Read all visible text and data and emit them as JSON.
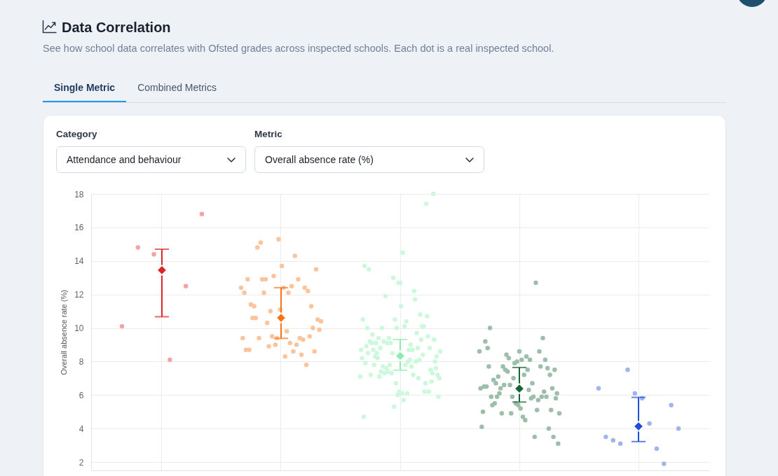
{
  "chart_data": {
    "type": "scatter",
    "title": "Data Correlation",
    "subtitle": "See how school data correlates with Ofsted grades across inspected schools. Each dot is a real inspected school.",
    "ylabel": "Overall absence rate (%)",
    "annotations": [
      "Single Metric",
      "Combined Metrics",
      "Category",
      "Attendance and behaviour",
      "Metric",
      "Overall absence rate (%)"
    ],
    "categories": [
      null,
      null,
      null,
      null,
      null
    ],
    "ylim": [
      1.5,
      18
    ],
    "yticks": [
      2,
      4,
      6,
      8,
      10,
      12,
      14,
      16,
      18
    ],
    "grid": true,
    "marker": "circle",
    "tick_labels": "y",
    "series": [
      {
        "colors": [
          "#f0a4a4",
          "#fcc49c",
          "#ccf8dc",
          "#9dbeaa",
          "#a0b5ef"
        ],
        "values": [
          10.1,
          12.4,
          7.1,
          8.6,
          6.4
        ]
      },
      {
        "colors": [
          "#f0a4a4",
          "#fcc49c",
          "#ccf8dc",
          "#9dbeaa",
          "#a0b5ef"
        ],
        "values": [
          14.8,
          9.4,
          8.7,
          6.4,
          3.5
        ]
      },
      {
        "colors": [
          "#f0a4a4",
          "#fcc49c",
          "#ccf8dc",
          "#9dbeaa",
          "#a0b5ef"
        ],
        "values": [
          14.4,
          12.1,
          8.2,
          4.1,
          3.3
        ]
      },
      {
        "colors": [
          "#f0a4a4",
          "#fcc49c",
          "#ccf8dc",
          "#9dbeaa",
          "#a0b5ef"
        ],
        "values": [
          8.1,
          8.7,
          10.5,
          5.0,
          3.1
        ]
      },
      {
        "colors": [
          "#f0a4a4",
          "#fcc49c",
          "#ccf8dc",
          "#9dbeaa",
          "#a0b5ef"
        ],
        "values": [
          12.5,
          12.9,
          4.7,
          6.5,
          7.5
        ]
      },
      {
        "colors": [
          "#f0a4a4",
          "#fcc49c",
          "#ccf8dc",
          "#9dbeaa",
          "#a0b5ef"
        ],
        "values": [
          16.8,
          8.7,
          13.7,
          9.2,
          6.1
        ]
      },
      {
        "colors": [
          null,
          "#fcc49c",
          "#ccf8dc",
          "#9dbeaa",
          "#a0b5ef"
        ],
        "values": [
          null,
          11.4,
          7.9,
          6.5,
          5.8
        ]
      },
      {
        "colors": [
          null,
          "#fcc49c",
          "#ccf8dc",
          "#9dbeaa",
          "#a0b5ef"
        ],
        "values": [
          null,
          10.6,
          8.9,
          8.8,
          4.3
        ]
      },
      {
        "colors": [
          null,
          "#fcc49c",
          "#ccf8dc",
          "#9dbeaa",
          "#a0b5ef"
        ],
        "values": [
          null,
          11.3,
          10.0,
          7.7,
          2.8
        ]
      },
      {
        "colors": [
          null,
          "#fcc49c",
          "#ccf8dc",
          "#9dbeaa",
          "#a0b5ef"
        ],
        "values": [
          null,
          10.6,
          8.5,
          10.0,
          1.9
        ]
      },
      {
        "colors": [
          null,
          "#fcc49c",
          "#ccf8dc",
          "#9dbeaa",
          "#a0b5ef"
        ],
        "values": [
          null,
          14.8,
          13.5,
          5.9,
          5.4
        ]
      },
      {
        "colors": [
          null,
          "#fcc49c",
          "#ccf8dc",
          "#9dbeaa",
          "#a0b5ef"
        ],
        "values": [
          null,
          9.4,
          9.2,
          5.4,
          4.0
        ]
      },
      {
        "colors": [
          null,
          "#fcc49c",
          "#ccf8dc",
          "#9dbeaa",
          null
        ],
        "values": [
          null,
          15.1,
          7.2,
          6.9,
          null
        ]
      },
      {
        "colors": [
          null,
          "#fcc49c",
          "#ccf8dc",
          "#9dbeaa",
          null
        ],
        "values": [
          null,
          12.9,
          9.1,
          5.5,
          null
        ]
      },
      {
        "colors": [
          null,
          "#fcc49c",
          "#ccf8dc",
          "#9dbeaa",
          null
        ],
        "values": [
          null,
          12.1,
          9.6,
          6.7,
          null
        ]
      },
      {
        "colors": [
          null,
          "#fcc49c",
          "#ccf8dc",
          "#9dbeaa",
          null
        ],
        "values": [
          null,
          12.9,
          8.7,
          5.9,
          null
        ]
      },
      {
        "colors": [
          null,
          "#fcc49c",
          "#ccf8dc",
          "#9dbeaa",
          null
        ],
        "values": [
          null,
          10.3,
          7.8,
          7.1,
          null
        ]
      },
      {
        "colors": [
          null,
          "#fcc49c",
          "#ccf8dc",
          "#9dbeaa",
          null
        ],
        "values": [
          null,
          8.9,
          8.3,
          6.1,
          null
        ]
      },
      {
        "colors": [
          null,
          "#fcc49c",
          "#ccf8dc",
          "#9dbeaa",
          null
        ],
        "values": [
          null,
          11.0,
          9.1,
          6.4,
          null
        ]
      },
      {
        "colors": [
          null,
          "#fcc49c",
          "#ccf8dc",
          "#9dbeaa",
          null
        ],
        "values": [
          null,
          9.5,
          8.5,
          4.9,
          null
        ]
      },
      {
        "colors": [
          null,
          "#fcc49c",
          "#ccf8dc",
          "#9dbeaa",
          null
        ],
        "values": [
          null,
          13.1,
          8.2,
          7.7,
          null
        ]
      },
      {
        "colors": [
          null,
          "#fcc49c",
          "#ccf8dc",
          "#9dbeaa",
          null
        ],
        "values": [
          null,
          9.0,
          9.4,
          6.6,
          null
        ]
      },
      {
        "colors": [
          null,
          "#fcc49c",
          "#ccf8dc",
          "#9dbeaa",
          null
        ],
        "values": [
          null,
          9.4,
          7.1,
          7.5,
          null
        ]
      },
      {
        "colors": [
          null,
          "#fcc49c",
          "#ccf8dc",
          "#9dbeaa",
          null
        ],
        "values": [
          null,
          15.3,
          8.8,
          8.4,
          null
        ]
      },
      {
        "colors": [
          null,
          "#fcc49c",
          "#ccf8dc",
          "#9dbeaa",
          null
        ],
        "values": [
          null,
          11.1,
          7.4,
          7.4,
          null
        ]
      },
      {
        "colors": [
          null,
          "#fcc49c",
          "#ccf8dc",
          "#9dbeaa",
          null
        ],
        "values": [
          null,
          13.7,
          10.0,
          8.2,
          null
        ]
      },
      {
        "colors": [
          null,
          "#fcc49c",
          "#ccf8dc",
          "#9dbeaa",
          null
        ],
        "values": [
          null,
          12.4,
          7.7,
          6.6,
          null
        ]
      },
      {
        "colors": [
          null,
          "#fcc49c",
          "#ccf8dc",
          "#9dbeaa",
          null
        ],
        "values": [
          null,
          8.3,
          9.2,
          4.9,
          null
        ]
      },
      {
        "colors": [
          null,
          "#fcc49c",
          "#ccf8dc",
          "#9dbeaa",
          null
        ],
        "values": [
          null,
          9.8,
          7.3,
          5.9,
          null
        ]
      },
      {
        "colors": [
          null,
          "#fcc49c",
          "#ccf8dc",
          "#9dbeaa",
          null
        ],
        "values": [
          null,
          12.1,
          11.9,
          7.0,
          null
        ]
      },
      {
        "colors": [
          null,
          "#fcc49c",
          "#ccf8dc",
          "#9dbeaa",
          null
        ],
        "values": [
          null,
          9.1,
          7.6,
          7.9,
          null
        ]
      },
      {
        "colors": [
          null,
          "#fcc49c",
          "#ccf8dc",
          "#9dbeaa",
          null
        ],
        "values": [
          null,
          12.5,
          9.1,
          5.5,
          null
        ]
      },
      {
        "colors": [
          null,
          "#fcc49c",
          "#ccf8dc",
          "#9dbeaa",
          null
        ],
        "values": [
          null,
          8.6,
          7.4,
          8.0,
          null
        ]
      },
      {
        "colors": [
          null,
          "#fcc49c",
          "#ccf8dc",
          "#9dbeaa",
          null
        ],
        "values": [
          null,
          14.3,
          9.4,
          5.4,
          null
        ]
      },
      {
        "colors": [
          null,
          "#fcc49c",
          "#ccf8dc",
          "#9dbeaa",
          null
        ],
        "values": [
          null,
          9.0,
          7.8,
          8.6,
          null
        ]
      },
      {
        "colors": [
          null,
          "#fcc49c",
          "#ccf8dc",
          "#9dbeaa",
          null
        ],
        "values": [
          null,
          12.9,
          9.1,
          5.2,
          null
        ]
      },
      {
        "colors": [
          null,
          "#fcc49c",
          "#ccf8dc",
          "#9dbeaa",
          null
        ],
        "values": [
          null,
          9.4,
          7.3,
          8.1,
          null
        ]
      },
      {
        "colors": [
          null,
          "#fcc49c",
          "#ccf8dc",
          "#9dbeaa",
          null
        ],
        "values": [
          null,
          8.4,
          8.5,
          4.7,
          null
        ]
      },
      {
        "colors": [
          null,
          "#fcc49c",
          "#ccf8dc",
          "#9dbeaa",
          null
        ],
        "values": [
          null,
          9.3,
          13.0,
          7.2,
          null
        ]
      },
      {
        "colors": [
          null,
          "#fcc49c",
          "#ccf8dc",
          "#9dbeaa",
          null
        ],
        "values": [
          null,
          12.4,
          5.3,
          4.5,
          null
        ]
      },
      {
        "colors": [
          null,
          "#fcc49c",
          "#ccf8dc",
          "#9dbeaa",
          null
        ],
        "values": [
          null,
          7.8,
          10.5,
          8.3,
          null
        ]
      },
      {
        "colors": [
          null,
          "#fcc49c",
          "#ccf8dc",
          "#9dbeaa",
          null
        ],
        "values": [
          null,
          12.2,
          6.7,
          7.5,
          null
        ]
      },
      {
        "colors": [
          null,
          "#fcc49c",
          "#ccf8dc",
          "#9dbeaa",
          null
        ],
        "values": [
          null,
          9.5,
          10.0,
          6.3,
          null
        ]
      },
      {
        "colors": [
          null,
          "#fcc49c",
          "#ccf8dc",
          "#9dbeaa",
          null
        ],
        "values": [
          null,
          11.3,
          6.0,
          8.1,
          null
        ]
      },
      {
        "colors": [
          null,
          "#fcc49c",
          "#ccf8dc",
          "#9dbeaa",
          null
        ],
        "values": [
          null,
          10.0,
          12.7,
          5.8,
          null
        ]
      },
      {
        "colors": [
          null,
          "#fcc49c",
          "#ccf8dc",
          "#9dbeaa",
          null
        ],
        "values": [
          null,
          8.6,
          6.2,
          6.7,
          null
        ]
      },
      {
        "colors": [
          null,
          "#fcc49c",
          "#ccf8dc",
          "#9dbeaa",
          null
        ],
        "values": [
          null,
          13.5,
          12.7,
          5.9,
          null
        ]
      },
      {
        "colors": [
          null,
          "#fcc49c",
          "#ccf8dc",
          "#9dbeaa",
          null
        ],
        "values": [
          null,
          10.5,
          11.3,
          3.5,
          null
        ]
      },
      {
        "colors": [
          null,
          "#fcc49c",
          "#ccf8dc",
          "#9dbeaa",
          null
        ],
        "values": [
          null,
          9.9,
          6.1,
          12.7,
          null
        ]
      },
      {
        "colors": [
          null,
          "#fcc49c",
          "#ccf8dc",
          "#9dbeaa",
          null
        ],
        "values": [
          null,
          10.4,
          14.5,
          5.1,
          null
        ]
      },
      {
        "colors": [
          null,
          null,
          "#ccf8dc",
          "#9dbeaa",
          null
        ],
        "values": [
          null,
          null,
          5.7,
          5.7,
          null
        ]
      },
      {
        "colors": [
          null,
          null,
          "#ccf8dc",
          "#9dbeaa",
          null
        ],
        "values": [
          null,
          null,
          10.1,
          8.6,
          null
        ]
      },
      {
        "colors": [
          null,
          null,
          "#ccf8dc",
          "#9dbeaa",
          null
        ],
        "values": [
          null,
          null,
          7.8,
          7.7,
          null
        ]
      },
      {
        "colors": [
          null,
          null,
          "#ccf8dc",
          "#9dbeaa",
          null
        ],
        "values": [
          null,
          null,
          10.4,
          5.9,
          null
        ]
      },
      {
        "colors": [
          null,
          null,
          "#ccf8dc",
          "#9dbeaa",
          null
        ],
        "values": [
          null,
          null,
          6.1,
          9.4,
          null
        ]
      },
      {
        "colors": [
          null,
          null,
          "#ccf8dc",
          "#9dbeaa",
          null
        ],
        "values": [
          null,
          null,
          8.0,
          6.2,
          null
        ]
      },
      {
        "colors": [
          null,
          null,
          "#ccf8dc",
          "#9dbeaa",
          null
        ],
        "values": [
          null,
          null,
          8.7,
          8.1,
          null
        ]
      },
      {
        "colors": [
          null,
          null,
          "#ccf8dc",
          "#9dbeaa",
          null
        ],
        "values": [
          null,
          null,
          8.1,
          5.9,
          null
        ]
      },
      {
        "colors": [
          null,
          null,
          "#ccf8dc",
          "#9dbeaa",
          null
        ],
        "values": [
          null,
          null,
          9.0,
          7.6,
          null
        ]
      },
      {
        "colors": [
          null,
          null,
          "#ccf8dc",
          "#9dbeaa",
          null
        ],
        "values": [
          null,
          null,
          7.7,
          4.0,
          null
        ]
      },
      {
        "colors": [
          null,
          null,
          "#ccf8dc",
          "#9dbeaa",
          null
        ],
        "values": [
          null,
          null,
          8.7,
          7.2,
          null
        ]
      },
      {
        "colors": [
          null,
          null,
          "#ccf8dc",
          "#9dbeaa",
          null
        ],
        "values": [
          null,
          null,
          7.2,
          5.1,
          null
        ]
      },
      {
        "colors": [
          null,
          null,
          "#ccf8dc",
          "#9dbeaa",
          null
        ],
        "values": [
          null,
          null,
          12.2,
          6.4,
          null
        ]
      },
      {
        "colors": [
          null,
          null,
          "#ccf8dc",
          "#9dbeaa",
          null
        ],
        "values": [
          null,
          null,
          11.7,
          3.5,
          null
        ]
      },
      {
        "colors": [
          null,
          null,
          "#ccf8dc",
          "#9dbeaa",
          null
        ],
        "values": [
          null,
          null,
          8.0,
          7.5,
          null
        ]
      },
      {
        "colors": [
          null,
          null,
          "#ccf8dc",
          "#9dbeaa",
          null
        ],
        "values": [
          null,
          null,
          9.7,
          5.8,
          null
        ]
      },
      {
        "colors": [
          null,
          null,
          "#ccf8dc",
          "#9dbeaa",
          null
        ],
        "values": [
          null,
          null,
          8.8,
          6.1,
          null
        ]
      },
      {
        "colors": [
          null,
          null,
          "#ccf8dc",
          "#9dbeaa",
          null
        ],
        "values": [
          null,
          null,
          7.0,
          3.1,
          null
        ]
      },
      {
        "colors": [
          null,
          null,
          "#ccf8dc",
          "#9dbeaa",
          null
        ],
        "values": [
          null,
          null,
          8.1,
          4.9,
          null
        ]
      },
      {
        "colors": [
          null,
          null,
          "#ccf8dc",
          null,
          null
        ],
        "values": [
          null,
          null,
          10.8,
          null,
          null
        ]
      },
      {
        "colors": [
          null,
          null,
          "#ccf8dc",
          null,
          null
        ],
        "values": [
          null,
          null,
          9.3,
          null,
          null
        ]
      },
      {
        "colors": [
          null,
          null,
          "#ccf8dc",
          null,
          null
        ],
        "values": [
          null,
          null,
          10.1,
          null,
          null
        ]
      },
      {
        "colors": [
          null,
          null,
          "#ccf8dc",
          null,
          null
        ],
        "values": [
          null,
          null,
          8.4,
          null,
          null
        ]
      },
      {
        "colors": [
          null,
          null,
          "#ccf8dc",
          null,
          null
        ],
        "values": [
          null,
          null,
          10.1,
          null,
          null
        ]
      },
      {
        "colors": [
          null,
          null,
          "#ccf8dc",
          null,
          null
        ],
        "values": [
          null,
          null,
          6.2,
          null,
          null
        ]
      },
      {
        "colors": [
          null,
          null,
          "#ccf8dc",
          null,
          null
        ],
        "values": [
          null,
          null,
          6.7,
          null,
          null
        ]
      },
      {
        "colors": [
          null,
          null,
          "#ccf8dc",
          null,
          null
        ],
        "values": [
          null,
          null,
          17.4,
          null,
          null
        ]
      },
      {
        "colors": [
          null,
          null,
          "#ccf8dc",
          null,
          null
        ],
        "values": [
          null,
          null,
          10.7,
          null,
          null
        ]
      },
      {
        "colors": [
          null,
          null,
          "#ccf8dc",
          null,
          null
        ],
        "values": [
          null,
          null,
          9.5,
          null,
          null
        ]
      },
      {
        "colors": [
          null,
          null,
          "#ccf8dc",
          null,
          null
        ],
        "values": [
          null,
          null,
          6.2,
          null,
          null
        ]
      },
      {
        "colors": [
          null,
          null,
          "#ccf8dc",
          null,
          null
        ],
        "values": [
          null,
          null,
          8.8,
          null,
          null
        ]
      },
      {
        "colors": [
          null,
          null,
          "#ccf8dc",
          null,
          null
        ],
        "values": [
          null,
          null,
          7.5,
          null,
          null
        ]
      },
      {
        "colors": [
          null,
          null,
          "#ccf8dc",
          null,
          null
        ],
        "values": [
          null,
          null,
          6.8,
          null,
          null
        ]
      },
      {
        "colors": [
          null,
          null,
          "#ccf8dc",
          null,
          null
        ],
        "values": [
          null,
          null,
          7.3,
          null,
          null
        ]
      },
      {
        "colors": [
          null,
          null,
          "#ccf8dc",
          null,
          null
        ],
        "values": [
          null,
          null,
          18.0,
          null,
          null
        ]
      },
      {
        "colors": [
          null,
          null,
          "#ccf8dc",
          null,
          null
        ],
        "values": [
          null,
          null,
          9.3,
          null,
          null
        ]
      },
      {
        "colors": [
          null,
          null,
          "#ccf8dc",
          null,
          null
        ],
        "values": [
          null,
          null,
          8.0,
          null,
          null
        ]
      },
      {
        "colors": [
          null,
          null,
          "#ccf8dc",
          null,
          null
        ],
        "values": [
          null,
          null,
          7.6,
          null,
          null
        ]
      },
      {
        "colors": [
          null,
          null,
          "#ccf8dc",
          null,
          null
        ],
        "values": [
          null,
          null,
          8.3,
          null,
          null
        ]
      },
      {
        "colors": [
          null,
          null,
          "#ccf8dc",
          null,
          null
        ],
        "values": [
          null,
          null,
          7.2,
          null,
          null
        ]
      },
      {
        "colors": [
          null,
          null,
          "#ccf8dc",
          null,
          null
        ],
        "values": [
          null,
          null,
          5.9,
          null,
          null
        ]
      },
      {
        "colors": [
          null,
          null,
          "#ccf8dc",
          null,
          null
        ],
        "values": [
          null,
          null,
          7.0,
          null,
          null
        ]
      },
      {
        "colors": [
          null,
          null,
          "#ccf8dc",
          null,
          null
        ],
        "values": [
          null,
          null,
          8.6,
          null,
          null
        ]
      },
      {
        "marker": "diamond",
        "colors": [
          "#dc2626",
          "#f97316",
          "#86efac",
          "#166534",
          "#1d4ed8"
        ],
        "values": [
          13.45,
          10.6,
          8.33,
          6.38,
          4.13
        ],
        "errors": [
          [
            10.67,
            14.7
          ],
          [
            9.38,
            12.4
          ],
          [
            7.48,
            9.31
          ],
          [
            5.58,
            7.64
          ],
          [
            3.22,
            5.86
          ]
        ]
      }
    ]
  }
}
